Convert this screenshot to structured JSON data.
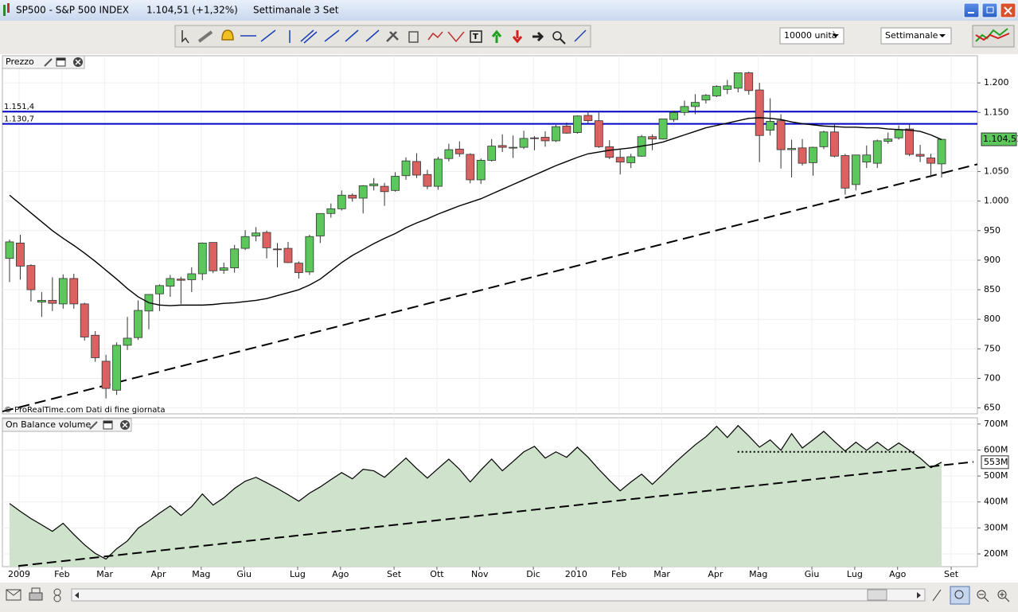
{
  "window": {
    "symbol": "SP500 - S&P 500 INDEX",
    "price": "1.104,51 (+1,32%)",
    "period": "Settimanale  3 Set"
  },
  "toolbar": {
    "units": "10000 unità",
    "timeframe": "Settimanale"
  },
  "footer_note": "© ProRealTime.com  Dati di fine giornata",
  "chart_data": [
    {
      "type": "candlestick",
      "title": "Prezzo",
      "categories": [
        "2009",
        null,
        null,
        null,
        "Feb",
        null,
        null,
        null,
        "Mar",
        null,
        null,
        null,
        null,
        "Apr",
        null,
        null,
        null,
        "Mag",
        null,
        null,
        null,
        "Giu",
        null,
        null,
        null,
        null,
        "Lug",
        null,
        null,
        null,
        "Ago",
        null,
        null,
        null,
        null,
        "Set",
        null,
        null,
        null,
        "Ott",
        null,
        null,
        null,
        "Nov",
        null,
        null,
        null,
        null,
        "Dic",
        null,
        null,
        null,
        "2010",
        null,
        null,
        null,
        "Feb",
        null,
        null,
        null,
        "Mar",
        null,
        null,
        null,
        null,
        "Apr",
        null,
        null,
        null,
        "Mag",
        null,
        null,
        null,
        null,
        "Giu",
        null,
        null,
        null,
        "Lug",
        null,
        null,
        null,
        "Ago",
        null,
        null,
        null,
        null,
        "Set"
      ],
      "open": [
        903,
        929,
        891,
        829,
        832,
        826,
        869,
        826,
        773,
        729,
        680,
        756,
        769,
        814,
        843,
        856,
        868,
        867,
        877,
        930,
        883,
        887,
        920,
        941,
        947,
        919,
        920,
        895,
        880,
        941,
        979,
        987,
        1010,
        1005,
        1026,
        1025,
        1018,
        1043,
        1067,
        1045,
        1025,
        1072,
        1088,
        1079,
        1036,
        1069,
        1094,
        1091,
        1091,
        1107,
        1108,
        1102,
        1127,
        1116,
        1145,
        1136,
        1092,
        1074,
        1065,
        1076,
        1109,
        1105,
        1138,
        1150,
        1160,
        1171,
        1178,
        1189,
        1191,
        1217,
        1188,
        1120,
        1136,
        1087,
        1090,
        1065,
        1092,
        1117,
        1077,
        1028,
        1066,
        1064,
        1101,
        1107,
        1122,
        1079,
        1073,
        1063
      ],
      "high": [
        935,
        943,
        893,
        846,
        871,
        876,
        877,
        828,
        780,
        740,
        761,
        804,
        832,
        842,
        859,
        875,
        872,
        888,
        930,
        930,
        896,
        926,
        951,
        956,
        950,
        929,
        931,
        898,
        943,
        979,
        996,
        1018,
        1013,
        1027,
        1039,
        1031,
        1049,
        1074,
        1081,
        1053,
        1075,
        1097,
        1101,
        1081,
        1072,
        1105,
        1113,
        1111,
        1119,
        1110,
        1118,
        1129,
        1133,
        1145,
        1151,
        1150,
        1103,
        1087,
        1080,
        1112,
        1113,
        1139,
        1153,
        1170,
        1181,
        1181,
        1196,
        1205,
        1217,
        1219,
        1200,
        1174,
        1147,
        1104,
        1105,
        1092,
        1119,
        1131,
        1080,
        1078,
        1094,
        1104,
        1116,
        1128,
        1130,
        1095,
        1080,
        1105
      ],
      "low": [
        863,
        867,
        830,
        804,
        814,
        818,
        818,
        764,
        728,
        666,
        672,
        748,
        765,
        783,
        814,
        838,
        826,
        846,
        866,
        878,
        877,
        879,
        917,
        932,
        903,
        888,
        895,
        869,
        875,
        929,
        972,
        984,
        999,
        979,
        1018,
        992,
        1016,
        1036,
        1039,
        1020,
        1019,
        1067,
        1075,
        1030,
        1029,
        1067,
        1083,
        1073,
        1088,
        1086,
        1092,
        1100,
        1114,
        1114,
        1132,
        1090,
        1071,
        1045,
        1056,
        1075,
        1086,
        1104,
        1134,
        1145,
        1147,
        1165,
        1176,
        1181,
        1184,
        1180,
        1066,
        1111,
        1055,
        1040,
        1060,
        1043,
        1088,
        1074,
        1011,
        1018,
        1056,
        1056,
        1097,
        1104,
        1076,
        1066,
        1040,
        1040
      ],
      "close": [
        931,
        890,
        850,
        832,
        827,
        869,
        826,
        770,
        735,
        683,
        756,
        768,
        815,
        842,
        857,
        869,
        866,
        877,
        929,
        882,
        887,
        919,
        940,
        946,
        921,
        918,
        896,
        879,
        940,
        979,
        987,
        1010,
        1005,
        1026,
        1029,
        1016,
        1042,
        1068,
        1044,
        1025,
        1071,
        1087,
        1080,
        1036,
        1069,
        1093,
        1091,
        1091,
        1106,
        1106,
        1102,
        1126,
        1115,
        1144,
        1136,
        1092,
        1074,
        1066,
        1075,
        1109,
        1105,
        1139,
        1150,
        1160,
        1167,
        1179,
        1194,
        1195,
        1217,
        1187,
        1111,
        1135,
        1087,
        1089,
        1064,
        1091,
        1117,
        1076,
        1022,
        1078,
        1078,
        1102,
        1105,
        1121,
        1079,
        1076,
        1064,
        1104.51
      ],
      "last_close_label": "1.104,51",
      "up_color": "#5cc85c",
      "down_color": "#dc6262",
      "moving_average": [
        1010,
        995,
        980,
        965,
        950,
        937,
        925,
        912,
        898,
        883,
        868,
        852,
        838,
        828,
        824,
        823,
        824,
        824,
        824,
        825,
        827,
        828,
        830,
        832,
        835,
        840,
        845,
        850,
        858,
        868,
        882,
        896,
        908,
        918,
        928,
        937,
        945,
        955,
        963,
        970,
        978,
        985,
        992,
        998,
        1004,
        1012,
        1020,
        1028,
        1036,
        1044,
        1052,
        1060,
        1067,
        1074,
        1080,
        1083,
        1086,
        1088,
        1090,
        1093,
        1096,
        1100,
        1106,
        1112,
        1118,
        1124,
        1128,
        1132,
        1136,
        1140,
        1141,
        1140,
        1138,
        1134,
        1131,
        1129,
        1127,
        1126,
        1125,
        1125,
        1124,
        1124,
        1122,
        1121,
        1120,
        1118,
        1112,
        1104
      ],
      "moving_average_color": "#000000",
      "hlines": [
        {
          "value": 1151.4,
          "label": "1.151,4"
        },
        {
          "value": 1130.7,
          "label": "1.130,7"
        }
      ],
      "hline_color": "#0000c8",
      "trendline": {
        "start": 647,
        "end": 1047
      },
      "ylim": [
        640,
        1246
      ],
      "yticks": [
        {
          "value": 1200,
          "label": "1.200"
        },
        {
          "value": 1150,
          "label": "1.150"
        },
        {
          "value": 1050,
          "label": "1.050"
        },
        {
          "value": 1000,
          "label": "1.000"
        },
        950,
        900,
        850,
        800,
        750,
        700,
        650
      ],
      "grid": true
    },
    {
      "type": "area",
      "title": "On Balance volume",
      "values": [
        394,
        364,
        336,
        312,
        287,
        318,
        275,
        235,
        202,
        180,
        220,
        250,
        299,
        327,
        357,
        385,
        348,
        382,
        431,
        388,
        416,
        452,
        480,
        495,
        474,
        452,
        428,
        403,
        434,
        458,
        486,
        513,
        489,
        526,
        520,
        495,
        532,
        569,
        529,
        492,
        529,
        565,
        526,
        477,
        523,
        565,
        520,
        556,
        593,
        614,
        569,
        593,
        572,
        611,
        572,
        526,
        483,
        443,
        477,
        507,
        468,
        507,
        547,
        584,
        620,
        651,
        691,
        648,
        694,
        654,
        611,
        639,
        599,
        663,
        608,
        639,
        672,
        633,
        596,
        630,
        599,
        630,
        599,
        627,
        599,
        569,
        532,
        553
      ],
      "last_label": "553M",
      "color": "#cfe2cb",
      "line_color": "#000000",
      "trendline": {
        "start": 150,
        "end": 541
      },
      "support": 593,
      "ylim": [
        151,
        724
      ],
      "yticks": [
        {
          "value": 700,
          "label": "700M"
        },
        {
          "value": 600,
          "label": "600M"
        },
        {
          "value": 500,
          "label": "500M"
        },
        {
          "value": 400,
          "label": "400M"
        },
        {
          "value": 300,
          "label": "300M"
        },
        {
          "value": 200,
          "label": "200M"
        }
      ],
      "grid": true
    }
  ]
}
